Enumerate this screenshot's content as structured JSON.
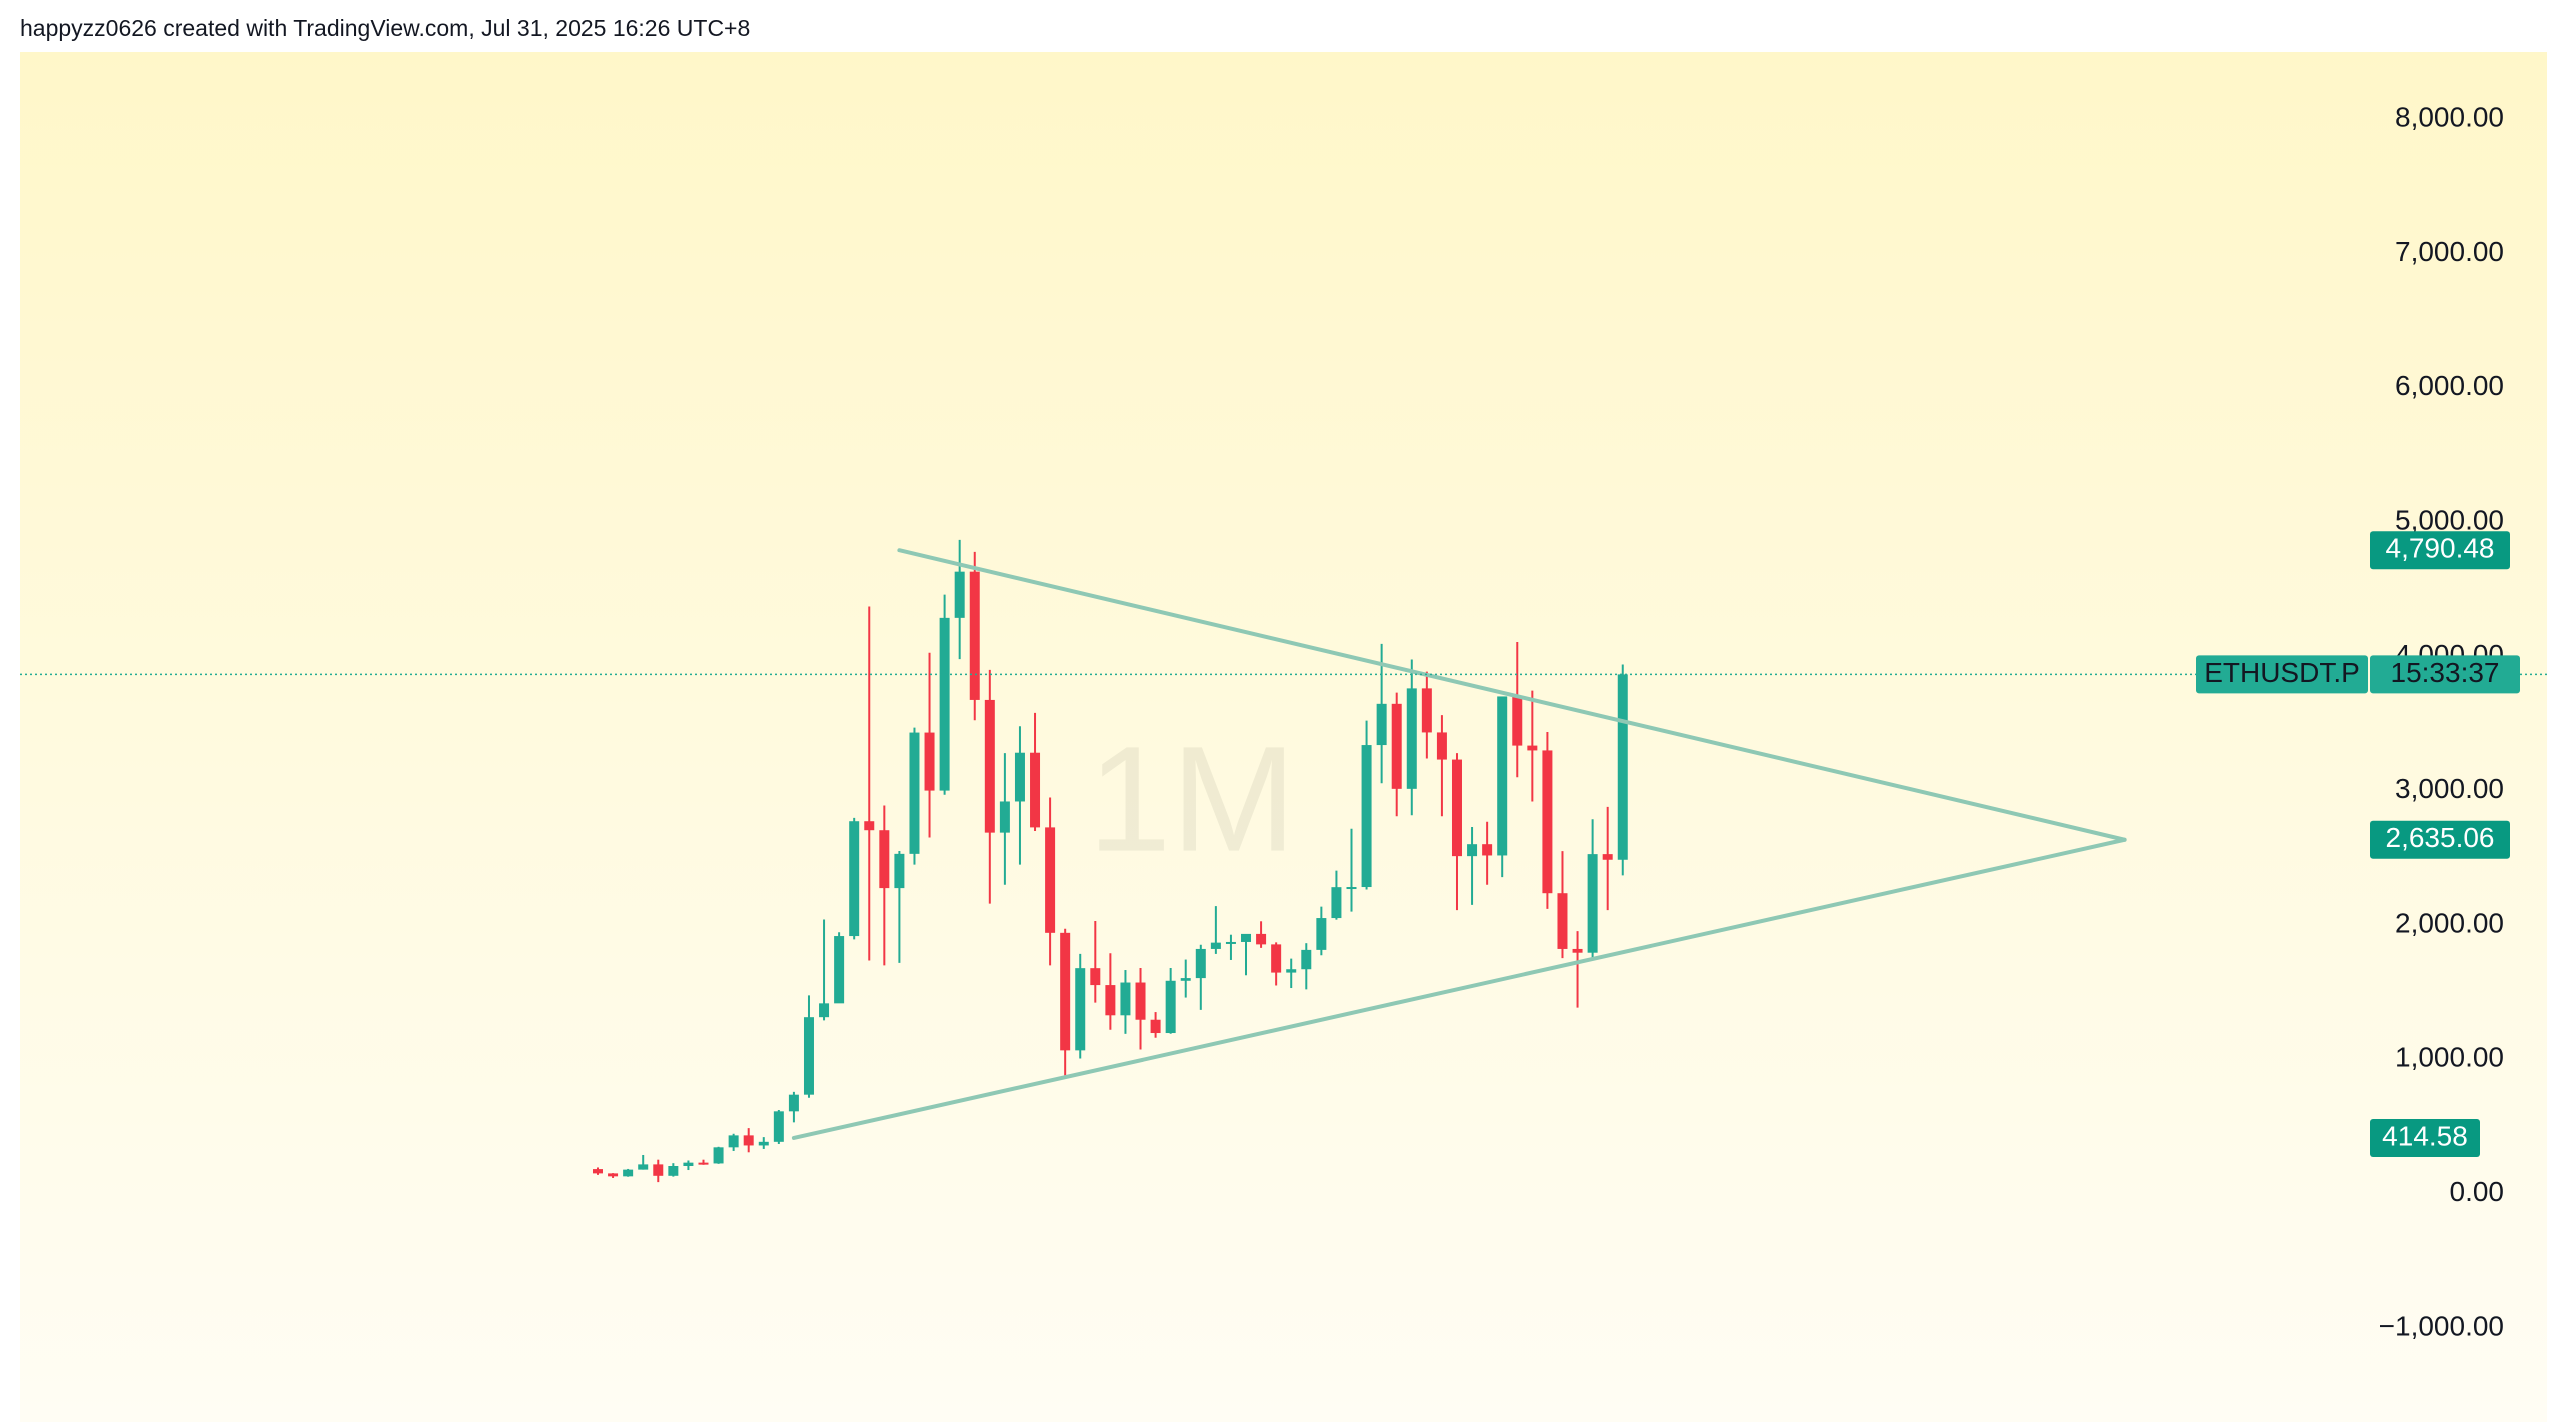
{
  "header": "happyzz0626 created with TradingView.com, Jul 31, 2025 16:26 UTC+8",
  "chart_data": {
    "type": "candlestick",
    "watermark": "1M",
    "ylim": [
      -1700,
      8500
    ],
    "yticks": [
      {
        "value": -1000,
        "label": "−1,000.00"
      },
      {
        "value": 0,
        "label": "0.00"
      },
      {
        "value": 1000,
        "label": "1,000.00"
      },
      {
        "value": 2000,
        "label": "2,000.00"
      },
      {
        "value": 3000,
        "label": "3,000.00"
      },
      {
        "value": 4000,
        "label": "4,000.00"
      },
      {
        "value": 5000,
        "label": "5,000.00"
      },
      {
        "value": 6000,
        "label": "6,000.00"
      },
      {
        "value": 7000,
        "label": "7,000.00"
      },
      {
        "value": 8000,
        "label": "8,000.00"
      }
    ],
    "up_color": "#22ab94",
    "down_color": "#f23645",
    "open": [
      183,
      151,
      129,
      179,
      218,
      133,
      206,
      231,
      225,
      345,
      434,
      359,
      386,
      613,
      737,
      1314,
      1417,
      1918,
      2773,
      2706,
      2275,
      2530,
      3433,
      3001,
      4287,
      4631,
      3676,
      2688,
      2920,
      3283,
      2727,
      1942,
      1067,
      1679,
      1553,
      1328,
      1572,
      1295,
      1196,
      1585,
      1605,
      1822,
      1869,
      1874,
      1934,
      1856,
      1646,
      1671,
      1815,
      2052,
      2282,
      2283,
      3340,
      3647,
      3014,
      3762,
      3434,
      3232,
      2513,
      2602,
      2518,
      3702,
      3336,
      3300,
      2237,
      1822,
      1794,
      2528,
      2486
    ],
    "high": [
      195,
      153,
      184,
      288,
      253,
      227,
      247,
      253,
      349,
      446,
      488,
      421,
      623,
      758,
      1476,
      2041,
      1946,
      2798,
      4372,
      2890,
      2551,
      3470,
      4027,
      4460,
      4868,
      4778,
      3900,
      3280,
      3480,
      3580,
      2950,
      1972,
      1785,
      2030,
      1790,
      1665,
      1680,
      1352,
      1680,
      1743,
      1853,
      2141,
      1928,
      1930,
      2028,
      1871,
      1750,
      1865,
      2137,
      2405,
      2717,
      3522,
      4093,
      3730,
      3977,
      3887,
      3563,
      3280,
      2730,
      2769,
      3682,
      4107,
      3745,
      3437,
      2550,
      1955,
      2788,
      2880,
      3940
    ],
    "low": [
      140,
      117,
      126,
      179,
      86,
      127,
      176,
      215,
      222,
      318,
      308,
      333,
      370,
      531,
      714,
      1290,
      1440,
      1893,
      1736,
      1700,
      1718,
      2450,
      2652,
      2970,
      3980,
      3525,
      2159,
      2300,
      2450,
      2700,
      1700,
      881,
      1006,
      1422,
      1220,
      1190,
      1073,
      1161,
      1191,
      1460,
      1368,
      1785,
      1740,
      1626,
      1830,
      1550,
      1531,
      1521,
      1775,
      2040,
      2100,
      2265,
      3056,
      2810,
      2817,
      3240,
      2810,
      2111,
      2150,
      2300,
      2357,
      3100,
      2920,
      2120,
      1754,
      1385,
      1752,
      2111,
      2370
    ],
    "close": [
      151,
      129,
      179,
      218,
      133,
      206,
      231,
      225,
      345,
      434,
      359,
      386,
      613,
      737,
      1314,
      1417,
      1918,
      2773,
      2706,
      2275,
      2530,
      3433,
      3001,
      4287,
      4631,
      3676,
      2688,
      2920,
      3283,
      2727,
      1942,
      1067,
      1679,
      1553,
      1328,
      1572,
      1295,
      1196,
      1585,
      1605,
      1822,
      1869,
      1874,
      1934,
      1856,
      1646,
      1671,
      1815,
      2052,
      2282,
      2283,
      3340,
      3647,
      3014,
      3762,
      3434,
      3232,
      2513,
      2602,
      2518,
      3702,
      3336,
      3300,
      2237,
      1822,
      1794,
      2528,
      2486,
      3866
    ],
    "symbol_label": "ETHUSDT.P",
    "countdown_label": "15:33:37",
    "trendlines": [
      {
        "x": [
          20,
          101.3
        ],
        "values": [
          4790.48,
          2635.06
        ],
        "color": "#8ec8b4"
      },
      {
        "x": [
          13,
          101.3
        ],
        "values": [
          414.58,
          2635.06
        ],
        "color": "#8ec8b4"
      }
    ],
    "price_labels": [
      {
        "value": 4790.48,
        "label": "4,790.48"
      },
      {
        "value": 2635.06,
        "label": "2,635.06"
      },
      {
        "value": 414.58,
        "label": "414.58"
      }
    ],
    "price_label_color": "#089981"
  }
}
